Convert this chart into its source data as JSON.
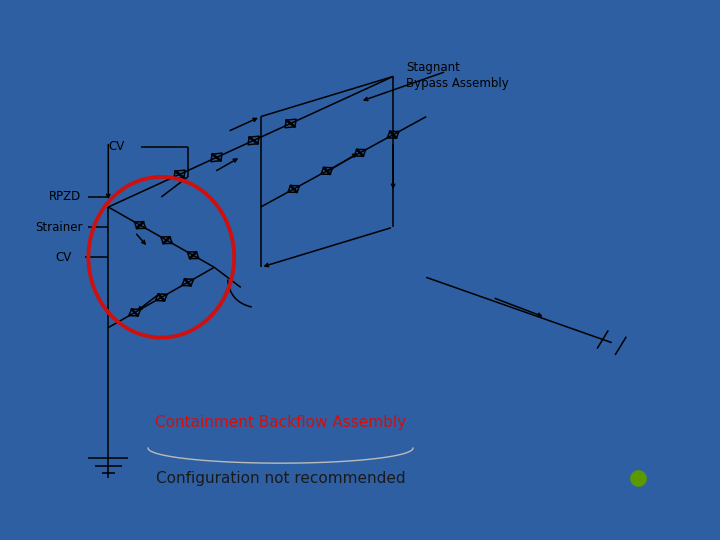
{
  "bg_color": "#ffffff",
  "slide_bg": "#2e5fa3",
  "label_stagnant": "Stagnant\nBypass Assembly",
  "label_cv_top": "CV",
  "label_rpzd": "RPZD",
  "label_strainer": "Strainer",
  "label_cv_bottom": "CV",
  "label_containment": "Containment Backflow Assembly",
  "label_config": "Configuration not recommended",
  "containment_color": "#cc1111",
  "text_color": "#000000",
  "config_text_color": "#1a1a1a",
  "green_dot_color": "#5a9a00",
  "figsize": [
    7.2,
    5.4
  ],
  "dpi": 100
}
